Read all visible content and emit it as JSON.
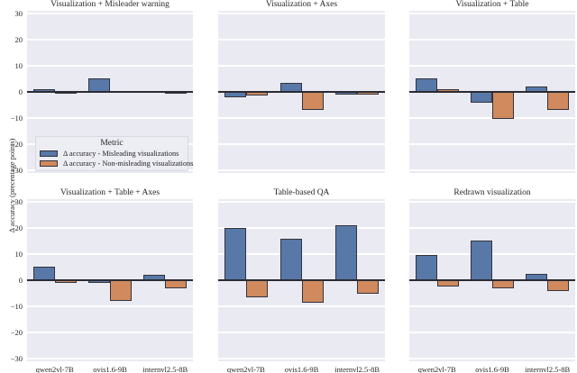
{
  "figure": {
    "ylabel": "Δ accuracy (precentage points)",
    "categories": [
      "qwen2vl-7B",
      "ovis1.6-9B",
      "internvl2.5-8B"
    ],
    "ytick_labels": [
      "30",
      "20",
      "10",
      "0",
      "−10",
      "−20",
      "−30"
    ],
    "ytick_values": [
      30,
      20,
      10,
      0,
      -10,
      -20,
      -30
    ],
    "ylim": [
      -31,
      31
    ],
    "grid": true,
    "colors": {
      "misleading": "#5878a8",
      "non_misleading": "#d08a5e",
      "axes_background": "#eaeaf2",
      "gridline": "#ffffff",
      "bar_edge": "#33333d",
      "zero_line": "#2b2b33"
    }
  },
  "legend": {
    "title": "Metric",
    "position": "lower left of first subplot",
    "entries": [
      {
        "label": "Δ accuracy - Misleading visualizations",
        "color": "#5878a8"
      },
      {
        "label": "Δ accuracy - Non-misleading visualizations",
        "color": "#d08a5e"
      }
    ]
  },
  "chart_data": [
    {
      "type": "bar",
      "title": "Visualization + Misleader warning",
      "categories": [
        "qwen2vl-7B",
        "ovis1.6-9B",
        "internvl2.5-8B"
      ],
      "ylim": [
        -31,
        31
      ],
      "series": [
        {
          "name": "Δ accuracy - Misleading visualizations",
          "values": [
            1,
            5,
            0.3
          ],
          "hatched": [
            false,
            false,
            false
          ]
        },
        {
          "name": "Δ accuracy - Non-misleading visualizations",
          "values": [
            -0.3,
            0.3,
            -0.3
          ],
          "hatched": [
            false,
            false,
            false
          ]
        }
      ]
    },
    {
      "type": "bar",
      "title": "Visualization + Axes",
      "categories": [
        "qwen2vl-7B",
        "ovis1.6-9B",
        "internvl2.5-8B"
      ],
      "ylim": [
        -31,
        31
      ],
      "series": [
        {
          "name": "Δ accuracy - Misleading visualizations",
          "values": [
            -2,
            3.5,
            -1
          ],
          "hatched": [
            false,
            false,
            false
          ]
        },
        {
          "name": "Δ accuracy - Non-misleading visualizations",
          "values": [
            -1.5,
            -7,
            -1
          ],
          "hatched": [
            false,
            false,
            false
          ]
        }
      ]
    },
    {
      "type": "bar",
      "title": "Visualization + Table",
      "categories": [
        "qwen2vl-7B",
        "ovis1.6-9B",
        "internvl2.5-8B"
      ],
      "ylim": [
        -31,
        31
      ],
      "series": [
        {
          "name": "Δ accuracy - Misleading visualizations",
          "values": [
            5,
            -4,
            2
          ],
          "hatched": [
            false,
            false,
            false
          ]
        },
        {
          "name": "Δ accuracy - Non-misleading visualizations",
          "values": [
            1,
            -10.5,
            -7
          ],
          "hatched": [
            false,
            true,
            false
          ]
        }
      ]
    },
    {
      "type": "bar",
      "title": "Visualization + Table + Axes",
      "categories": [
        "qwen2vl-7B",
        "ovis1.6-9B",
        "internvl2.5-8B"
      ],
      "ylim": [
        -31,
        31
      ],
      "series": [
        {
          "name": "Δ accuracy - Misleading visualizations",
          "values": [
            5,
            -1,
            2
          ],
          "hatched": [
            false,
            false,
            false
          ]
        },
        {
          "name": "Δ accuracy - Non-misleading visualizations",
          "values": [
            -1,
            -8,
            -3
          ],
          "hatched": [
            false,
            false,
            false
          ]
        }
      ]
    },
    {
      "type": "bar",
      "title": "Table-based QA",
      "categories": [
        "qwen2vl-7B",
        "ovis1.6-9B",
        "internvl2.5-8B"
      ],
      "ylim": [
        -31,
        31
      ],
      "series": [
        {
          "name": "Δ accuracy - Misleading visualizations",
          "values": [
            20,
            16,
            21
          ],
          "hatched": [
            true,
            true,
            true
          ]
        },
        {
          "name": "Δ accuracy - Non-misleading visualizations",
          "values": [
            -6.5,
            -8.5,
            -5
          ],
          "hatched": [
            false,
            false,
            false
          ]
        }
      ]
    },
    {
      "type": "bar",
      "title": "Redrawn visualization",
      "categories": [
        "qwen2vl-7B",
        "ovis1.6-9B",
        "internvl2.5-8B"
      ],
      "ylim": [
        -31,
        31
      ],
      "series": [
        {
          "name": "Δ accuracy - Misleading visualizations",
          "values": [
            9.5,
            15,
            2.5
          ],
          "hatched": [
            true,
            true,
            false
          ]
        },
        {
          "name": "Δ accuracy - Non-misleading visualizations",
          "values": [
            -2.5,
            -3,
            -4
          ],
          "hatched": [
            false,
            false,
            false
          ]
        }
      ]
    }
  ]
}
